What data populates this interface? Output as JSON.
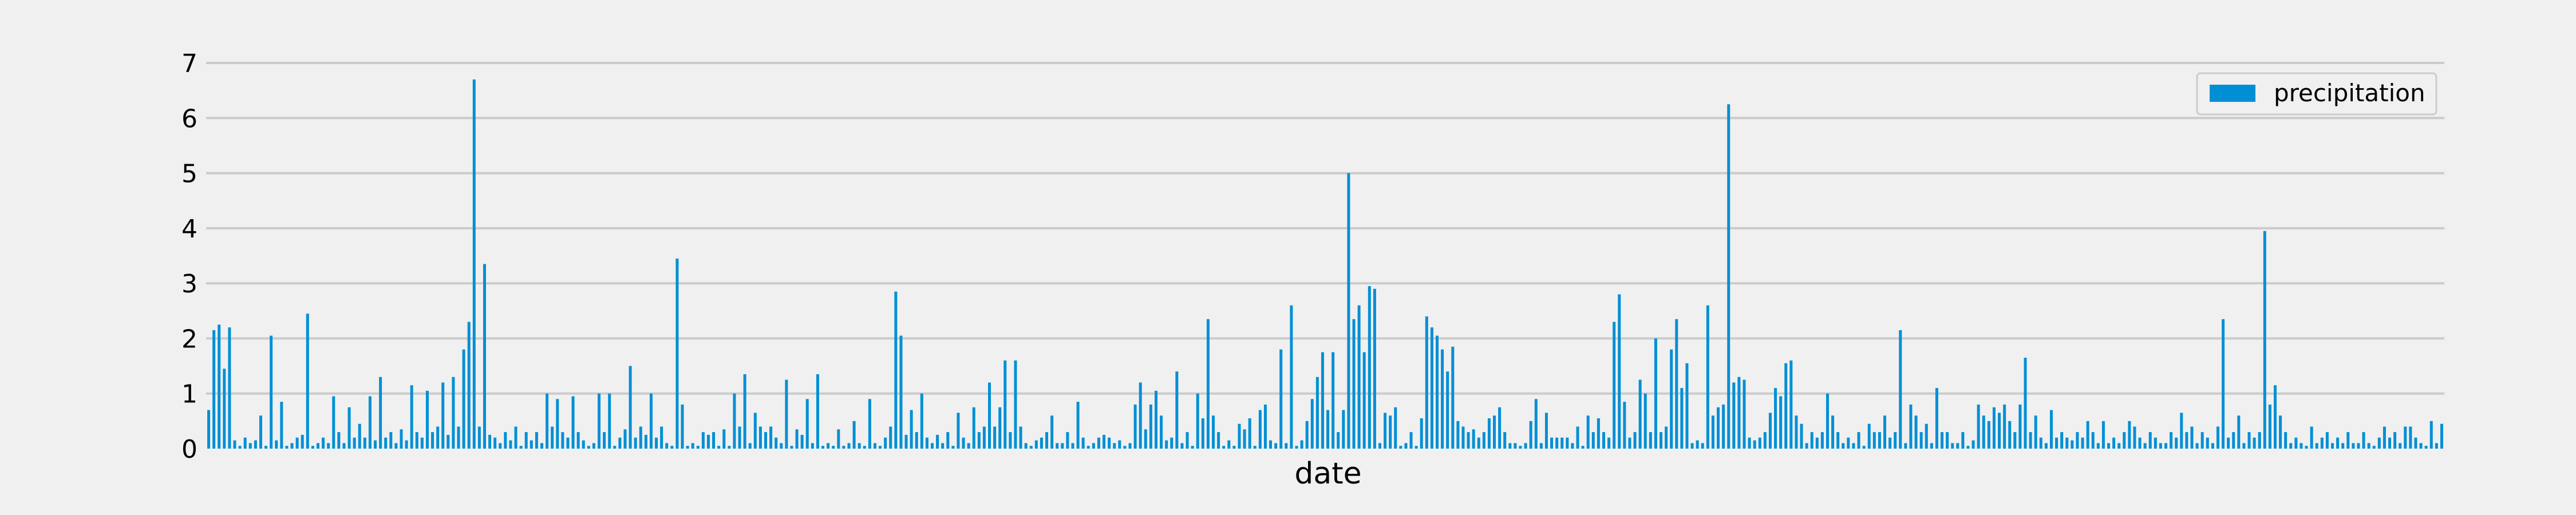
{
  "chart_data": {
    "type": "bar",
    "xlabel": "date",
    "ylabel": "",
    "ylim": [
      0,
      7
    ],
    "yticks": [
      0,
      1,
      2,
      3,
      4,
      5,
      6,
      7
    ],
    "grid": "horizontal",
    "legend_placement": "top-right",
    "series": [
      {
        "name": "precipitation",
        "color": "#008fd5",
        "values": [
          0.7,
          2.15,
          2.25,
          1.45,
          2.2,
          0.15,
          0.05,
          0.2,
          0.1,
          0.15,
          0.6,
          0.05,
          2.05,
          0.15,
          0.85,
          0.05,
          0.1,
          0.2,
          0.25,
          2.45,
          0.05,
          0.1,
          0.2,
          0.1,
          0.95,
          0.3,
          0.1,
          0.75,
          0.2,
          0.45,
          0.2,
          0.95,
          0.15,
          1.3,
          0.2,
          0.3,
          0.1,
          0.35,
          0.15,
          1.15,
          0.3,
          0.2,
          1.05,
          0.3,
          0.4,
          1.2,
          0.25,
          1.3,
          0.4,
          1.8,
          2.3,
          6.7,
          0.4,
          3.35,
          0.25,
          0.2,
          0.1,
          0.3,
          0.15,
          0.4,
          0.05,
          0.3,
          0.15,
          0.3,
          0.1,
          1.0,
          0.4,
          0.9,
          0.3,
          0.2,
          0.95,
          0.3,
          0.15,
          0.05,
          0.1,
          1.0,
          0.3,
          1.0,
          0.05,
          0.2,
          0.35,
          1.5,
          0.2,
          0.4,
          0.25,
          1.0,
          0.2,
          0.4,
          0.1,
          0.05,
          3.45,
          0.8,
          0.05,
          0.1,
          0.05,
          0.3,
          0.25,
          0.3,
          0.05,
          0.35,
          0.05,
          1.0,
          0.4,
          1.35,
          0.1,
          0.65,
          0.4,
          0.3,
          0.4,
          0.2,
          0.1,
          1.25,
          0.05,
          0.35,
          0.25,
          0.9,
          0.1,
          1.35,
          0.05,
          0.1,
          0.05,
          0.35,
          0.05,
          0.1,
          0.5,
          0.1,
          0.05,
          0.9,
          0.1,
          0.05,
          0.2,
          0.4,
          2.85,
          2.05,
          0.25,
          0.7,
          0.3,
          1.0,
          0.2,
          0.1,
          0.25,
          0.1,
          0.3,
          0.05,
          0.65,
          0.2,
          0.1,
          0.75,
          0.3,
          0.4,
          1.2,
          0.4,
          0.75,
          1.6,
          0.3,
          1.6,
          0.4,
          0.1,
          0.05,
          0.15,
          0.2,
          0.3,
          0.6,
          0.1,
          0.1,
          0.3,
          0.1,
          0.85,
          0.2,
          0.05,
          0.1,
          0.2,
          0.25,
          0.2,
          0.1,
          0.15,
          0.05,
          0.1,
          0.8,
          1.2,
          0.35,
          0.8,
          1.05,
          0.6,
          0.15,
          0.2,
          1.4,
          0.1,
          0.3,
          0.05,
          1.0,
          0.55,
          2.35,
          0.6,
          0.3,
          0.05,
          0.15,
          0.05,
          0.45,
          0.35,
          0.55,
          0.05,
          0.7,
          0.8,
          0.15,
          0.1,
          1.8,
          0.1,
          2.6,
          0.05,
          0.15,
          0.5,
          0.9,
          1.3,
          1.75,
          0.7,
          1.75,
          0.3,
          0.7,
          5.0,
          2.35,
          2.6,
          1.75,
          2.95,
          2.9,
          0.1,
          0.65,
          0.6,
          0.75,
          0.05,
          0.1,
          0.3,
          0.05,
          0.55,
          2.4,
          2.2,
          2.05,
          1.8,
          1.4,
          1.85,
          0.5,
          0.4,
          0.3,
          0.35,
          0.2,
          0.3,
          0.55,
          0.6,
          0.75,
          0.3,
          0.1,
          0.1,
          0.05,
          0.1,
          0.5,
          0.9,
          0.1,
          0.65,
          0.2,
          0.2,
          0.2,
          0.2,
          0.1,
          0.4,
          0.05,
          0.6,
          0.3,
          0.55,
          0.3,
          0.2,
          2.3,
          2.8,
          0.85,
          0.2,
          0.3,
          1.25,
          1.0,
          0.3,
          2.0,
          0.3,
          0.4,
          1.8,
          2.35,
          1.1,
          1.55,
          0.1,
          0.15,
          0.1,
          2.6,
          0.6,
          0.75,
          0.8,
          6.25,
          1.2,
          1.3,
          1.25,
          0.2,
          0.15,
          0.2,
          0.3,
          0.65,
          1.1,
          0.95,
          1.55,
          1.6,
          0.6,
          0.45,
          0.1,
          0.3,
          0.2,
          0.3,
          1.0,
          0.6,
          0.3,
          0.1,
          0.2,
          0.1,
          0.3,
          0.05,
          0.45,
          0.3,
          0.3,
          0.6,
          0.2,
          0.3,
          2.15,
          0.1,
          0.8,
          0.6,
          0.3,
          0.45,
          0.1,
          1.1,
          0.3,
          0.3,
          0.1,
          0.1,
          0.3,
          0.05,
          0.15,
          0.8,
          0.6,
          0.5,
          0.75,
          0.65,
          0.8,
          0.5,
          0.3,
          0.8,
          1.65,
          0.3,
          0.6,
          0.2,
          0.1,
          0.7,
          0.2,
          0.3,
          0.2,
          0.15,
          0.3,
          0.2,
          0.5,
          0.3,
          0.1,
          0.5,
          0.1,
          0.2,
          0.1,
          0.3,
          0.5,
          0.4,
          0.2,
          0.1,
          0.3,
          0.2,
          0.1,
          0.1,
          0.3,
          0.2,
          0.65,
          0.3,
          0.4,
          0.1,
          0.3,
          0.2,
          0.1,
          0.4,
          2.35,
          0.2,
          0.3,
          0.6,
          0.1,
          0.3,
          0.2,
          0.3,
          3.95,
          0.8,
          1.15,
          0.6,
          0.3,
          0.1,
          0.2,
          0.1,
          0.05,
          0.4,
          0.1,
          0.2,
          0.3,
          0.1,
          0.2,
          0.1,
          0.3,
          0.1,
          0.1,
          0.3,
          0.1,
          0.05,
          0.2,
          0.4,
          0.2,
          0.3,
          0.1,
          0.4,
          0.4,
          0.2,
          0.1,
          0.05,
          0.5,
          0.1,
          0.45
        ]
      }
    ]
  }
}
